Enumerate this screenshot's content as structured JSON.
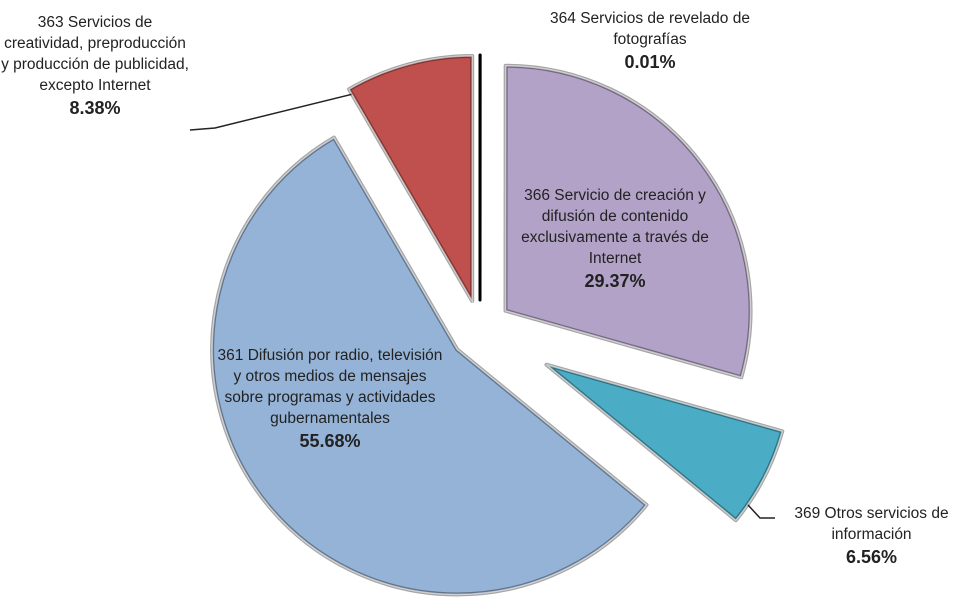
{
  "chart_data": {
    "type": "pie",
    "categories": [
      "364 Servicios de revelado de fotografías",
      "366 Servicio de creación y difusión de contenido exclusivamente a través de Internet",
      "369 Otros servicios de información",
      "361 Difusión por radio, televisión y otros medios de mensajes sobre programas y actividades gubernamentales",
      "363 Servicios de creatividad, preproducción y producción de publicidad, excepto Internet"
    ],
    "values": [
      0.01,
      29.37,
      6.56,
      55.68,
      8.38
    ],
    "value_labels": [
      "0.01%",
      "29.37%",
      "6.56%",
      "55.68%",
      "8.38%"
    ],
    "colors": [
      "#000000",
      "#b3a2c7",
      "#4bacc6",
      "#95b3d7",
      "#c0504d"
    ]
  }
}
